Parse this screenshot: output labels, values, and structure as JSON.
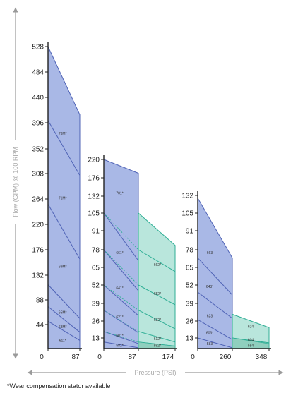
{
  "chart_data": {
    "type": "area",
    "ylabel": "Flow (GPM) @ 100 RPM",
    "xlabel": "Pressure (PSI)",
    "footnote": "*Wear compensation stator available",
    "colors": {
      "blue_fill": "#a9b8e6",
      "blue_stroke": "#4f63b6",
      "green_fill": "#b9e6dc",
      "green_stroke": "#2fae95",
      "dark_green": "#8fcfbe"
    },
    "panels": [
      {
        "yticks": [
          "44",
          "88",
          "132",
          "176",
          "220",
          "264",
          "308",
          "352",
          "396",
          "440",
          "484",
          "528"
        ],
        "xticks": [
          "0",
          "87"
        ],
        "ymax": 528,
        "segments": [
          {
            "x_from": 0,
            "x_to": 87,
            "color": "blue",
            "y_top": [
              528,
              410
            ]
          }
        ],
        "lines": [
          {
            "y": [
              400,
              305
            ],
            "style": "solid"
          },
          {
            "y": [
              255,
              160
            ],
            "style": "solid"
          },
          {
            "y": [
              115,
              55
            ],
            "style": "solid"
          },
          {
            "y": [
              76,
              30
            ],
            "style": "solid"
          },
          {
            "y": [
              50,
              15
            ],
            "style": "solid"
          }
        ],
        "labels": [
          {
            "text": "73M*",
            "x": 40,
            "y": 378
          },
          {
            "text": "71M*",
            "x": 40,
            "y": 266
          },
          {
            "text": "69M*",
            "x": 40,
            "y": 147
          },
          {
            "text": "65M*",
            "x": 40,
            "y": 66
          },
          {
            "text": "63M*",
            "x": 40,
            "y": 40
          },
          {
            "text": "611*",
            "x": 40,
            "y": 15
          }
        ]
      },
      {
        "yticks": [
          "13",
          "26",
          "39",
          "52",
          "65",
          "78",
          "91",
          "105",
          "132",
          "176",
          "220"
        ],
        "xticks": [
          "0",
          "87",
          "174"
        ],
        "segments": [
          {
            "x_from": 0,
            "x_to": 87,
            "color": "blue",
            "y_top": [
              220,
              187
            ]
          },
          {
            "x_from": 87,
            "x_to": 174,
            "color": "green",
            "y_top": [
              105,
              81
            ]
          }
        ],
        "lines": [
          {
            "y": [
              105,
              70
            ],
            "style": "solid"
          },
          {
            "y": [
              78,
              48
            ],
            "style": "solid"
          },
          {
            "y": [
              52,
              30
            ],
            "style": "solid"
          },
          {
            "y": [
              34,
              17
            ],
            "style": "solid"
          },
          {
            "y": [
              18,
              6
            ],
            "style": "solid"
          },
          {
            "y": [
              8,
              1
            ],
            "style": "solid"
          }
        ],
        "labels": [
          {
            "text": "701*",
            "x": 40,
            "y": 140
          },
          {
            "text": "661*",
            "x": 40,
            "y": 76
          },
          {
            "text": "641*",
            "x": 40,
            "y": 50
          },
          {
            "text": "621*",
            "x": 40,
            "y": 29
          },
          {
            "text": "601*",
            "x": 40,
            "y": 15
          },
          {
            "text": "581*",
            "x": 40,
            "y": 4
          },
          {
            "text": "662*",
            "x": 132,
            "y": 67
          },
          {
            "text": "652*",
            "x": 132,
            "y": 46
          },
          {
            "text": "632*",
            "x": 132,
            "y": 27
          },
          {
            "text": "612*",
            "x": 132,
            "y": 12
          },
          {
            "text": "592*",
            "x": 132,
            "y": 4
          }
        ]
      },
      {
        "yticks": [
          "13",
          "26",
          "39",
          "52",
          "65",
          "78",
          "91",
          "105",
          "132"
        ],
        "xticks": [
          "0",
          "260",
          "348"
        ],
        "segments": [
          {
            "x_from": 0,
            "x_to": 260,
            "color": "blue",
            "y_top": [
              128,
              72
            ]
          },
          {
            "x_from": 260,
            "x_to": 348,
            "color": "green",
            "y_top": [
              31,
              21
            ]
          }
        ],
        "lines": [
          {
            "y": [
              72,
              45
            ],
            "style": "solid"
          },
          {
            "y": [
              47,
              28
            ],
            "style": "solid"
          },
          {
            "y": [
              27,
              11
            ],
            "style": "solid"
          },
          {
            "y": [
              13,
              1
            ],
            "style": "solid"
          }
        ],
        "labels": [
          {
            "text": "663",
            "x": 90,
            "y": 76
          },
          {
            "text": "643*",
            "x": 90,
            "y": 51
          },
          {
            "text": "623",
            "x": 90,
            "y": 30
          },
          {
            "text": "603*",
            "x": 90,
            "y": 17
          },
          {
            "text": "583",
            "x": 90,
            "y": 6
          },
          {
            "text": "624",
            "x": 304,
            "y": 22
          },
          {
            "text": "604",
            "x": 304,
            "y": 11
          },
          {
            "text": "584",
            "x": 304,
            "y": 4
          }
        ]
      }
    ]
  }
}
